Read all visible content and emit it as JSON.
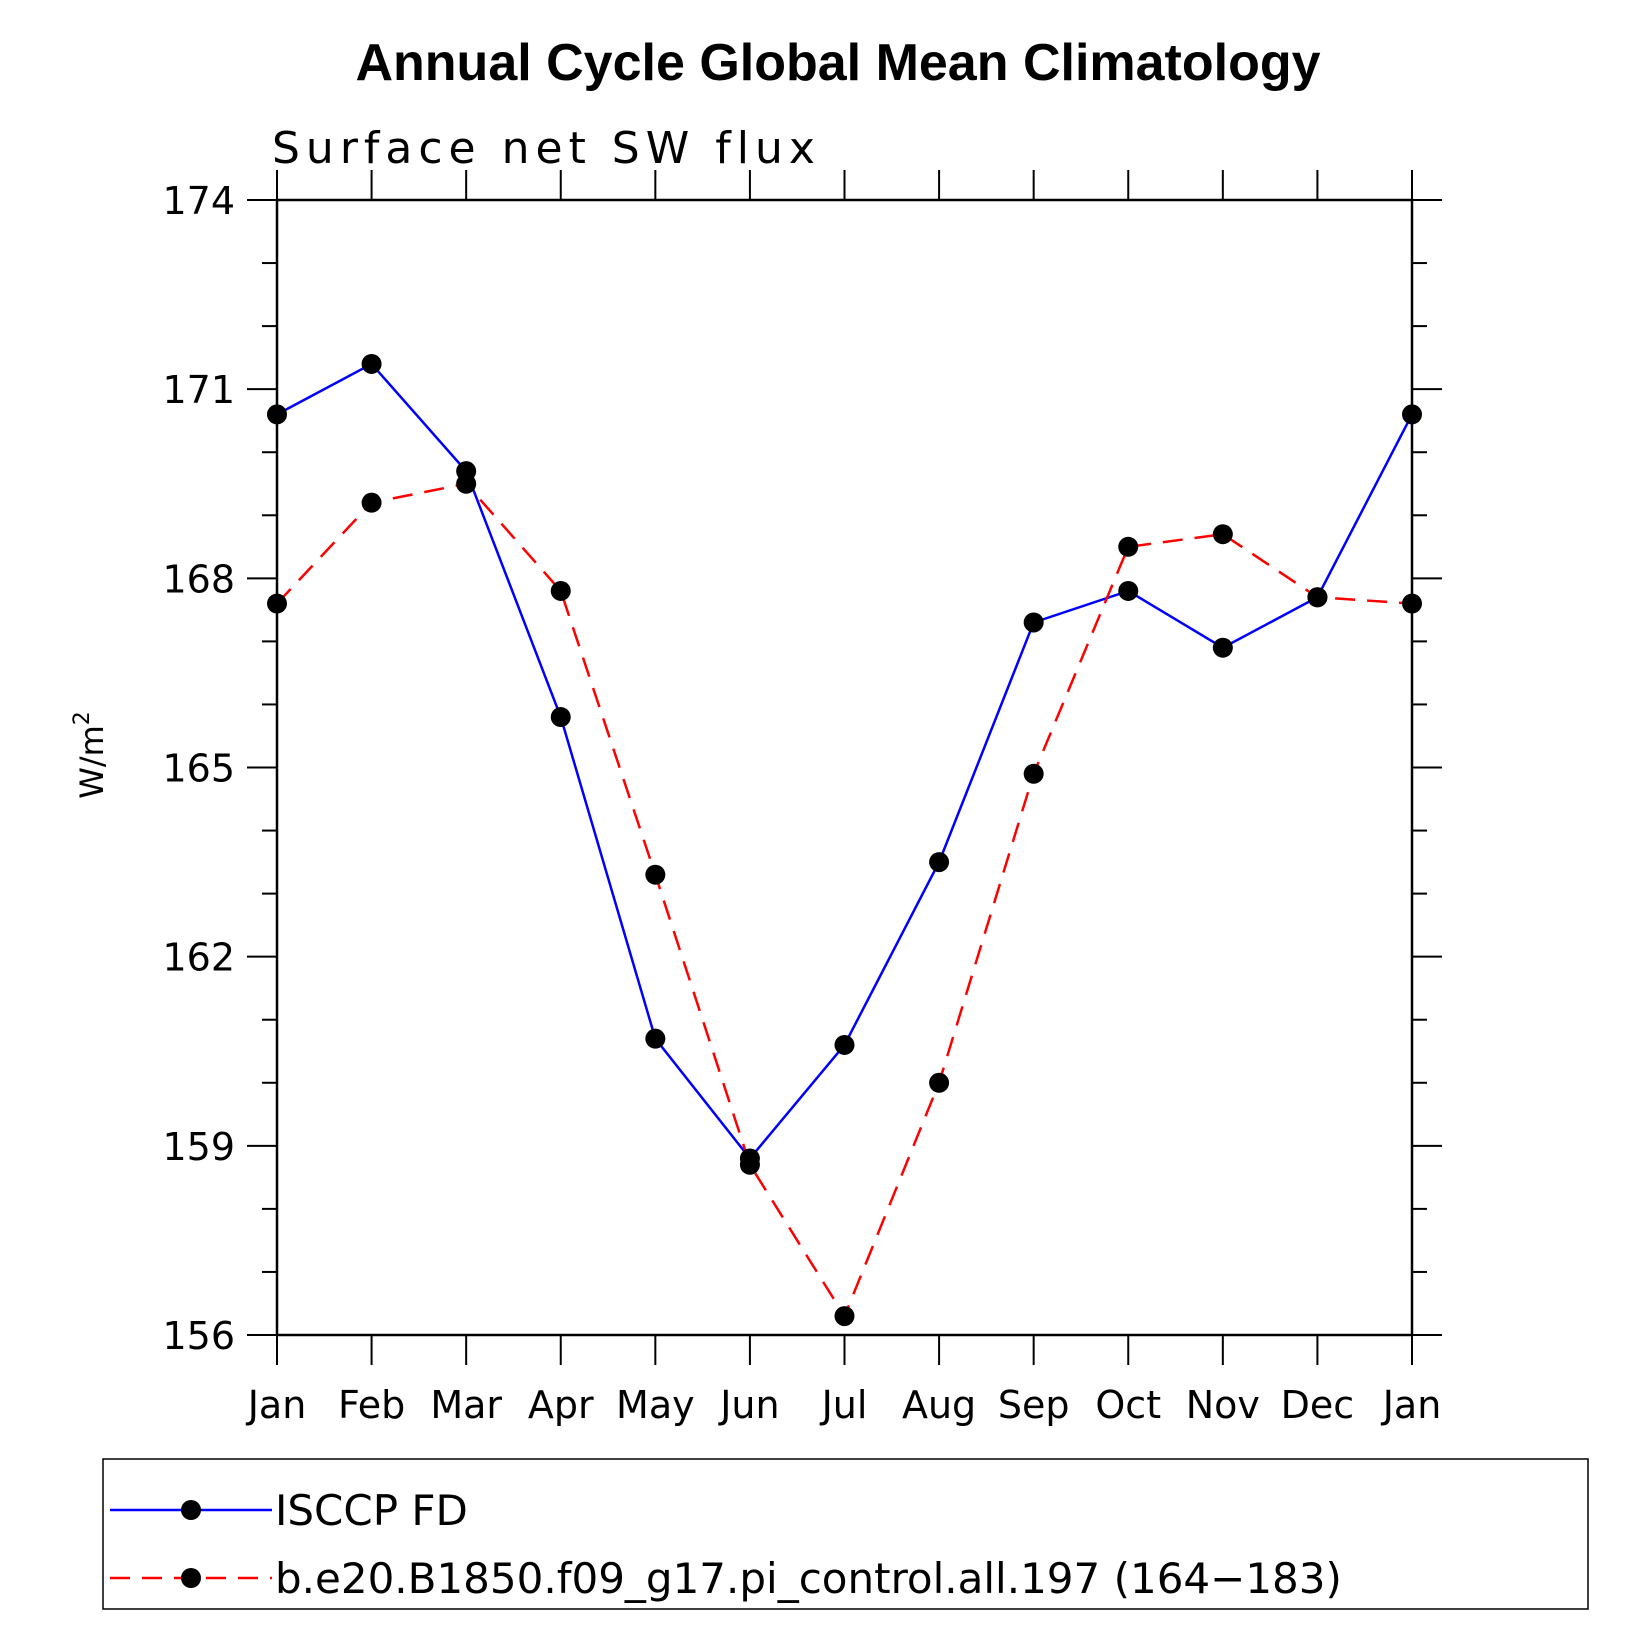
{
  "chart_data": {
    "type": "line",
    "title": "Annual Cycle Global Mean Climatology",
    "subtitle": "Surface net SW flux",
    "ylabel": "W/m",
    "ylabel_sup": "2",
    "xlabel": "",
    "categories": [
      "Jan",
      "Feb",
      "Mar",
      "Apr",
      "May",
      "Jun",
      "Jul",
      "Aug",
      "Sep",
      "Oct",
      "Nov",
      "Dec",
      "Jan"
    ],
    "ylim": [
      156,
      174
    ],
    "y_ticks": [
      "156",
      "159",
      "162",
      "165",
      "168",
      "171",
      "174"
    ],
    "series": [
      {
        "name": "ISCCP FD",
        "color": "#0000ff",
        "dash": "solid",
        "marker": "filled-circle",
        "values": [
          170.6,
          171.4,
          169.7,
          165.8,
          160.7,
          158.8,
          160.6,
          163.5,
          167.3,
          167.8,
          166.9,
          167.7,
          170.6
        ]
      },
      {
        "name": "b.e20.B1850.f09_g17.pi_control.all.197 (164−183)",
        "color": "#ff0000",
        "dash": "dashed",
        "marker": "filled-circle",
        "values": [
          167.6,
          169.2,
          169.5,
          167.8,
          163.3,
          158.7,
          156.3,
          160.0,
          164.9,
          168.5,
          168.7,
          167.7,
          167.6
        ]
      }
    ],
    "grid": false,
    "legend_position": "bottom"
  }
}
